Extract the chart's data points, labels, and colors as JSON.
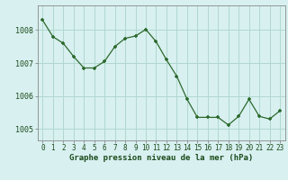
{
  "x": [
    0,
    1,
    2,
    3,
    4,
    5,
    6,
    7,
    8,
    9,
    10,
    11,
    12,
    13,
    14,
    15,
    16,
    17,
    18,
    19,
    20,
    21,
    22,
    23
  ],
  "y": [
    1008.3,
    1007.8,
    1007.6,
    1007.2,
    1006.85,
    1006.85,
    1007.05,
    1007.5,
    1007.75,
    1007.82,
    1008.02,
    1007.65,
    1007.1,
    1006.6,
    1005.9,
    1005.35,
    1005.35,
    1005.35,
    1005.12,
    1005.38,
    1005.9,
    1005.38,
    1005.3,
    1005.55
  ],
  "line_color": "#2d6a2d",
  "marker_color": "#2d6a2d",
  "bg_color": "#d8f0f0",
  "grid_color": "#b0d8d0",
  "xlabel": "Graphe pression niveau de la mer (hPa)",
  "xlabel_color": "#1a4a1a",
  "tick_color": "#1a4a1a",
  "axis_color": "#888888",
  "ylim": [
    1004.65,
    1008.75
  ],
  "yticks": [
    1005,
    1006,
    1007,
    1008
  ],
  "xticks": [
    0,
    1,
    2,
    3,
    4,
    5,
    6,
    7,
    8,
    9,
    10,
    11,
    12,
    13,
    14,
    15,
    16,
    17,
    18,
    19,
    20,
    21,
    22,
    23
  ],
  "tick_fontsize": 5.5,
  "xlabel_fontsize": 6.5,
  "ytick_fontsize": 6.0
}
